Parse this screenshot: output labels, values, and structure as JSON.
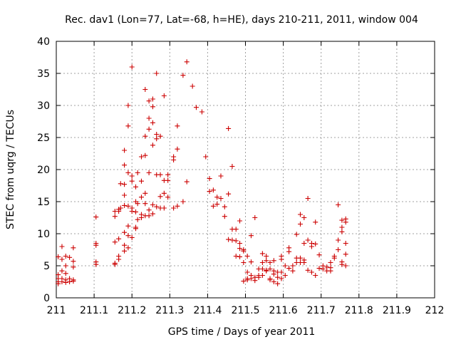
{
  "chart_data": {
    "type": "scatter",
    "title": "Rec. dav1 (Lon=77, Lat=-68, h=HE), days 210-211, 2011, window 004",
    "xlabel": "GPS time / Days of year 2011",
    "ylabel": "STEC from uqrg / TECUs",
    "xlim": [
      211,
      212
    ],
    "ylim": [
      0,
      40
    ],
    "xticks": [
      "211",
      "211.1",
      "211.2",
      "211.3",
      "211.4",
      "211.5",
      "211.6",
      "211.7",
      "211.8",
      "211.9",
      "212"
    ],
    "yticks": [
      "0",
      "5",
      "10",
      "15",
      "20",
      "25",
      "30",
      "35",
      "40"
    ],
    "grid": true,
    "marker": "plus",
    "color": "#cc0000",
    "points": [
      [
        211.005,
        6.4
      ],
      [
        211.005,
        3.6
      ],
      [
        211.005,
        3.0
      ],
      [
        211.005,
        2.5
      ],
      [
        211.005,
        2.2
      ],
      [
        211.015,
        8.0
      ],
      [
        211.015,
        6.0
      ],
      [
        211.015,
        4.2
      ],
      [
        211.015,
        3.0
      ],
      [
        211.015,
        2.5
      ],
      [
        211.025,
        6.5
      ],
      [
        211.025,
        5.0
      ],
      [
        211.025,
        3.8
      ],
      [
        211.025,
        2.8
      ],
      [
        211.025,
        2.4
      ],
      [
        211.035,
        6.3
      ],
      [
        211.035,
        3.0
      ],
      [
        211.035,
        2.5
      ],
      [
        211.045,
        7.8
      ],
      [
        211.045,
        5.7
      ],
      [
        211.045,
        4.8
      ],
      [
        211.045,
        2.8
      ],
      [
        211.045,
        2.6
      ],
      [
        211.105,
        12.6
      ],
      [
        211.105,
        8.5
      ],
      [
        211.105,
        8.2
      ],
      [
        211.105,
        5.6
      ],
      [
        211.105,
        5.2
      ],
      [
        211.155,
        13.5
      ],
      [
        211.155,
        12.7
      ],
      [
        211.155,
        8.7
      ],
      [
        211.155,
        5.4
      ],
      [
        211.155,
        5.2
      ],
      [
        211.165,
        13.5
      ],
      [
        211.165,
        13.8
      ],
      [
        211.165,
        9.2
      ],
      [
        211.165,
        6.5
      ],
      [
        211.165,
        6.0
      ],
      [
        211.17,
        17.8
      ],
      [
        211.17,
        14.0
      ],
      [
        211.18,
        23.0
      ],
      [
        211.18,
        20.7
      ],
      [
        211.18,
        17.7
      ],
      [
        211.18,
        16.0
      ],
      [
        211.18,
        14.4
      ],
      [
        211.18,
        10.2
      ],
      [
        211.18,
        8.2
      ],
      [
        211.18,
        7.3
      ],
      [
        211.19,
        30.0
      ],
      [
        211.19,
        26.8
      ],
      [
        211.19,
        19.5
      ],
      [
        211.19,
        14.3
      ],
      [
        211.19,
        11.2
      ],
      [
        211.19,
        9.7
      ],
      [
        211.19,
        7.8
      ],
      [
        211.2,
        36.0
      ],
      [
        211.2,
        19.0
      ],
      [
        211.2,
        18.2
      ],
      [
        211.2,
        14.0
      ],
      [
        211.2,
        13.5
      ],
      [
        211.2,
        9.4
      ],
      [
        211.21,
        17.3
      ],
      [
        211.21,
        15.0
      ],
      [
        211.21,
        13.4
      ],
      [
        211.21,
        11.0
      ],
      [
        211.21,
        10.8
      ],
      [
        211.215,
        19.5
      ],
      [
        211.215,
        14.7
      ],
      [
        211.215,
        12.2
      ],
      [
        211.225,
        22.0
      ],
      [
        211.225,
        18.2
      ],
      [
        211.225,
        15.7
      ],
      [
        211.225,
        13.0
      ],
      [
        211.225,
        12.5
      ],
      [
        211.235,
        32.5
      ],
      [
        211.235,
        25.2
      ],
      [
        211.235,
        22.2
      ],
      [
        211.235,
        16.3
      ],
      [
        211.235,
        14.7
      ],
      [
        211.235,
        12.8
      ],
      [
        211.245,
        30.7
      ],
      [
        211.245,
        28.0
      ],
      [
        211.245,
        26.3
      ],
      [
        211.245,
        19.5
      ],
      [
        211.245,
        13.7
      ],
      [
        211.245,
        12.8
      ],
      [
        211.255,
        31.0
      ],
      [
        211.255,
        29.8
      ],
      [
        211.255,
        27.3
      ],
      [
        211.255,
        23.8
      ],
      [
        211.255,
        14.5
      ],
      [
        211.255,
        13.1
      ],
      [
        211.265,
        35.0
      ],
      [
        211.265,
        25.5
      ],
      [
        211.265,
        24.8
      ],
      [
        211.265,
        19.2
      ],
      [
        211.265,
        14.2
      ],
      [
        211.275,
        25.2
      ],
      [
        211.275,
        19.2
      ],
      [
        211.275,
        15.8
      ],
      [
        211.275,
        14.0
      ],
      [
        211.285,
        31.5
      ],
      [
        211.285,
        18.3
      ],
      [
        211.285,
        16.3
      ],
      [
        211.285,
        14.0
      ],
      [
        211.295,
        19.2
      ],
      [
        211.295,
        18.3
      ],
      [
        211.295,
        15.7
      ],
      [
        211.31,
        22.0
      ],
      [
        211.31,
        21.5
      ],
      [
        211.31,
        14.0
      ],
      [
        211.32,
        26.8
      ],
      [
        211.32,
        23.2
      ],
      [
        211.32,
        14.3
      ],
      [
        211.335,
        34.7
      ],
      [
        211.335,
        15.0
      ],
      [
        211.345,
        36.8
      ],
      [
        211.345,
        18.1
      ],
      [
        211.36,
        33.0
      ],
      [
        211.37,
        29.7
      ],
      [
        211.385,
        29.0
      ],
      [
        211.395,
        22.0
      ],
      [
        211.405,
        18.6
      ],
      [
        211.405,
        16.6
      ],
      [
        211.415,
        16.8
      ],
      [
        211.415,
        14.3
      ],
      [
        211.425,
        14.6
      ],
      [
        211.425,
        15.7
      ],
      [
        211.435,
        19.0
      ],
      [
        211.435,
        15.5
      ],
      [
        211.445,
        14.2
      ],
      [
        211.445,
        12.7
      ],
      [
        211.455,
        26.4
      ],
      [
        211.455,
        16.2
      ],
      [
        211.455,
        9.1
      ],
      [
        211.465,
        20.5
      ],
      [
        211.465,
        10.7
      ],
      [
        211.465,
        9.0
      ],
      [
        211.475,
        10.7
      ],
      [
        211.475,
        8.9
      ],
      [
        211.475,
        6.5
      ],
      [
        211.485,
        12.0
      ],
      [
        211.485,
        8.5
      ],
      [
        211.485,
        7.7
      ],
      [
        211.485,
        6.4
      ],
      [
        211.495,
        7.5
      ],
      [
        211.495,
        7.3
      ],
      [
        211.495,
        5.5
      ],
      [
        211.495,
        2.6
      ],
      [
        211.505,
        6.5
      ],
      [
        211.505,
        4.0
      ],
      [
        211.505,
        3.0
      ],
      [
        211.505,
        2.8
      ],
      [
        211.515,
        9.7
      ],
      [
        211.515,
        5.6
      ],
      [
        211.515,
        3.5
      ],
      [
        211.515,
        3.0
      ],
      [
        211.525,
        12.5
      ],
      [
        211.525,
        3.2
      ],
      [
        211.525,
        2.7
      ],
      [
        211.535,
        4.5
      ],
      [
        211.535,
        3.5
      ],
      [
        211.535,
        3.2
      ],
      [
        211.545,
        6.9
      ],
      [
        211.545,
        5.5
      ],
      [
        211.545,
        4.5
      ],
      [
        211.545,
        3.5
      ],
      [
        211.555,
        6.5
      ],
      [
        211.555,
        5.8
      ],
      [
        211.555,
        4.3
      ],
      [
        211.555,
        4.2
      ],
      [
        211.565,
        5.5
      ],
      [
        211.565,
        4.5
      ],
      [
        211.565,
        3.0
      ],
      [
        211.565,
        2.8
      ],
      [
        211.575,
        5.8
      ],
      [
        211.575,
        4.2
      ],
      [
        211.575,
        3.7
      ],
      [
        211.575,
        2.5
      ],
      [
        211.585,
        4.0
      ],
      [
        211.585,
        3.2
      ],
      [
        211.585,
        2.2
      ],
      [
        211.595,
        6.5
      ],
      [
        211.595,
        6.0
      ],
      [
        211.595,
        4.0
      ],
      [
        211.595,
        3.0
      ],
      [
        211.605,
        5.0
      ],
      [
        211.605,
        3.5
      ],
      [
        211.615,
        7.8
      ],
      [
        211.615,
        7.2
      ],
      [
        211.615,
        4.6
      ],
      [
        211.625,
        5.0
      ],
      [
        211.625,
        4.2
      ],
      [
        211.635,
        9.9
      ],
      [
        211.635,
        6.2
      ],
      [
        211.635,
        5.5
      ],
      [
        211.645,
        13.0
      ],
      [
        211.645,
        11.5
      ],
      [
        211.645,
        6.2
      ],
      [
        211.645,
        5.5
      ],
      [
        211.655,
        12.5
      ],
      [
        211.655,
        8.5
      ],
      [
        211.655,
        5.9
      ],
      [
        211.655,
        5.5
      ],
      [
        211.665,
        15.5
      ],
      [
        211.665,
        9.0
      ],
      [
        211.665,
        4.3
      ],
      [
        211.675,
        8.5
      ],
      [
        211.675,
        8.0
      ],
      [
        211.675,
        4.0
      ],
      [
        211.685,
        11.8
      ],
      [
        211.685,
        8.4
      ],
      [
        211.685,
        3.5
      ],
      [
        211.695,
        6.7
      ],
      [
        211.695,
        4.6
      ],
      [
        211.705,
        5.0
      ],
      [
        211.705,
        4.5
      ],
      [
        211.715,
        4.8
      ],
      [
        211.715,
        4.2
      ],
      [
        211.725,
        5.5
      ],
      [
        211.725,
        4.7
      ],
      [
        211.725,
        4.2
      ],
      [
        211.735,
        6.5
      ],
      [
        211.735,
        6.2
      ],
      [
        211.745,
        14.5
      ],
      [
        211.745,
        9.0
      ],
      [
        211.745,
        7.5
      ],
      [
        211.755,
        12.1
      ],
      [
        211.755,
        11.0
      ],
      [
        211.755,
        10.3
      ],
      [
        211.755,
        5.6
      ],
      [
        211.755,
        5.2
      ],
      [
        211.765,
        12.3
      ],
      [
        211.765,
        11.8
      ],
      [
        211.765,
        8.5
      ],
      [
        211.765,
        6.8
      ],
      [
        211.765,
        5.0
      ]
    ]
  }
}
